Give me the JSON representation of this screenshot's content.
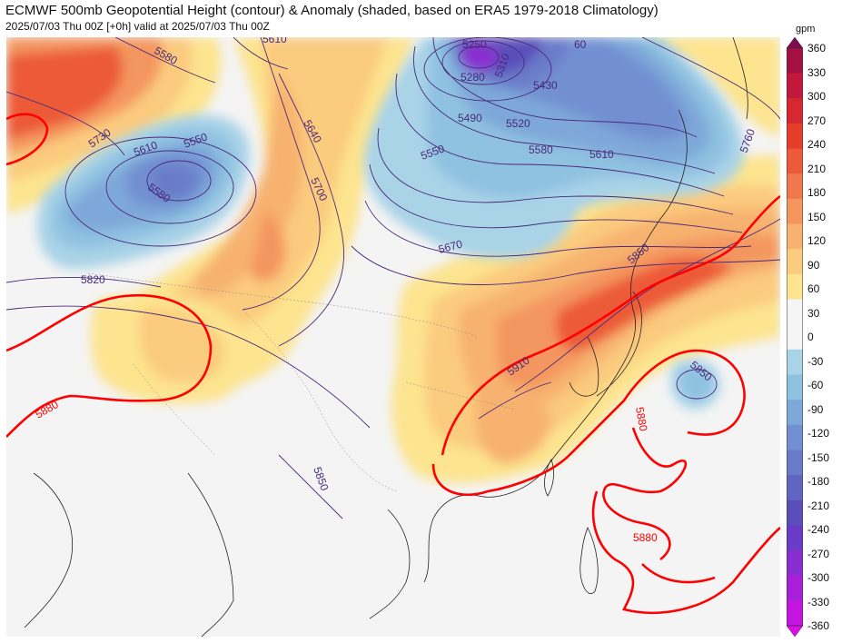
{
  "header": {
    "title": "ECMWF 500mb Geopotential Height (contour) & Anomaly (shaded, based on ERA5 1979-2018 Climatology)",
    "subtitle": "2025/07/03 Thu 00Z [+0h] valid at 2025/07/03 Thu 00Z"
  },
  "colorbar": {
    "unit": "gpm",
    "ticks": [
      "360",
      "330",
      "300",
      "270",
      "240",
      "210",
      "180",
      "150",
      "120",
      "90",
      "60",
      "30",
      "0",
      "-30",
      "-60",
      "-90",
      "-120",
      "-150",
      "-180",
      "-210",
      "-240",
      "-270",
      "-300",
      "-330",
      "-360"
    ],
    "colors_top_to_bottom": [
      "#7e0a4f",
      "#a51043",
      "#c2183c",
      "#d52830",
      "#e43e2b",
      "#ec5a38",
      "#f1784c",
      "#f4965e",
      "#f7b26f",
      "#fbcb7e",
      "#fde48f",
      "#f5f5f5",
      "#f5f5f5",
      "#a9d3e7",
      "#8fc1e1",
      "#7ea8d9",
      "#7290d1",
      "#6a7bc9",
      "#6065c1",
      "#5a4fba",
      "#6a3bc6",
      "#8a2dd0",
      "#a71fd8",
      "#c414e0",
      "#df0be8"
    ]
  },
  "contour_labels": {
    "h5250": "5250",
    "h5280": "5280",
    "h5310": "5310",
    "h5430": "5430",
    "h5490": "5490",
    "h5520": "5520",
    "h5550a": "5550",
    "h5550b": "5550",
    "h5580a": "5580",
    "h5580b": "5580",
    "h5580c": "5580",
    "h5610a": "5610",
    "h5610b": "5610",
    "h5610c": "5610",
    "h5640": "5640",
    "h5670": "5670",
    "h5700": "5700",
    "h5730": "5730",
    "h5760": "5760",
    "h5820": "5820",
    "h5850a": "5850",
    "h5850b": "5850",
    "h5850c": "5850",
    "h5880a": "5880",
    "h5880b": "5880",
    "h5880c": "5880",
    "h5910": "5910",
    "h5460": "60"
  },
  "colors": {
    "contour": "#4a2a7a",
    "contour_5880": "#ff0000",
    "map_background": "#f4f4f4"
  }
}
